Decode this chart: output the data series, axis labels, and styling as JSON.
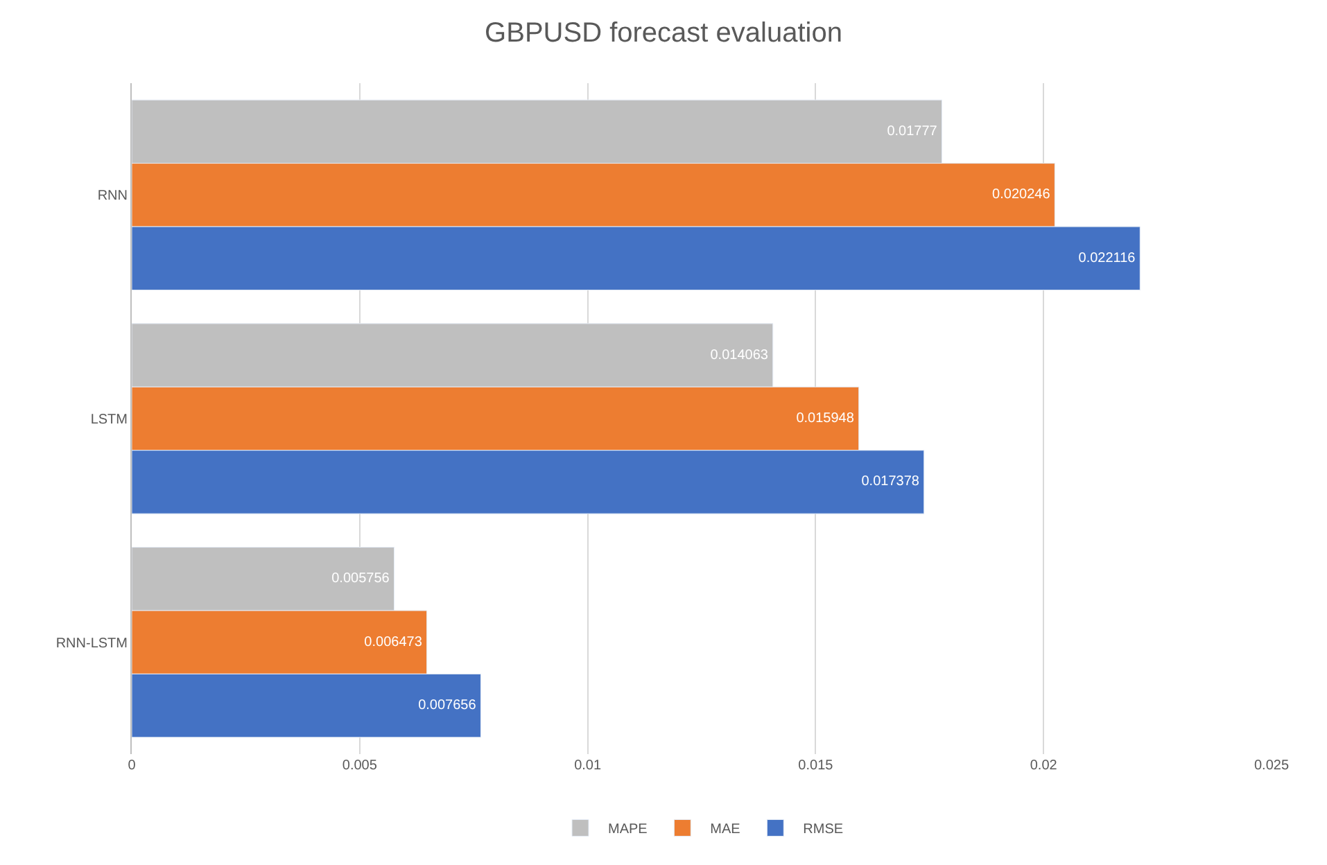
{
  "chart_data": {
    "type": "bar",
    "orientation": "horizontal",
    "title": "GBPUSD forecast evaluation",
    "categories": [
      "RNN",
      "LSTM",
      "RNN-LSTM"
    ],
    "series": [
      {
        "name": "MAPE",
        "color": "#bfbfbf",
        "values": [
          0.01777,
          0.014063,
          0.005756
        ]
      },
      {
        "name": "MAE",
        "color": "#ed7d31",
        "values": [
          0.020246,
          0.015948,
          0.006473
        ]
      },
      {
        "name": "RMSE",
        "color": "#4472c4",
        "values": [
          0.022116,
          0.017378,
          0.007656
        ]
      }
    ],
    "xlim": [
      0,
      0.025
    ],
    "xticks": [
      0,
      0.005,
      0.01,
      0.015,
      0.02,
      0.025
    ],
    "grid": "x",
    "legend": "bottom",
    "data_labels": true
  }
}
